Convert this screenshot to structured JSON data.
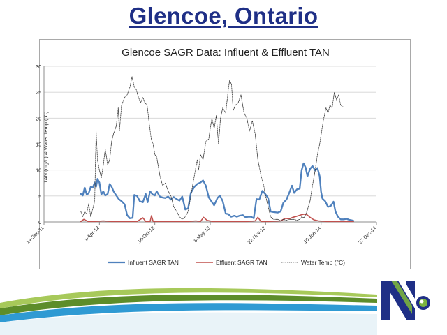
{
  "slide": {
    "title": "Glencoe, Ontario"
  },
  "chart_data": {
    "type": "line",
    "title": "Glencoe SAGR Data: Influent & Effluent TAN",
    "ylabel": "TAN (mg/L) & Water Temp (°C)",
    "xlabel": "",
    "ylim": [
      0,
      30
    ],
    "yticks": [
      0,
      5,
      10,
      15,
      20,
      25,
      30
    ],
    "xlim": [
      "2011-09-14",
      "2014-12-27"
    ],
    "xticks": [
      {
        "date": "2011-09-14",
        "label": "14-Sep-11"
      },
      {
        "date": "2012-04-01",
        "label": "1-Apr-12"
      },
      {
        "date": "2012-10-18",
        "label": "18-Oct-12"
      },
      {
        "date": "2013-05-06",
        "label": "6-May-13"
      },
      {
        "date": "2013-11-22",
        "label": "22-Nov-13"
      },
      {
        "date": "2014-06-10",
        "label": "10-Jun-14"
      },
      {
        "date": "2014-12-27",
        "label": "27-Dec-14"
      }
    ],
    "grid": "horizontal",
    "legend_position": "bottom",
    "series": [
      {
        "name": "Influent SAGR TAN",
        "color": "#4f81bd",
        "style": "solid-thick",
        "points": [
          [
            "2012-01-25",
            5.4
          ],
          [
            "2012-02-01",
            5.1
          ],
          [
            "2012-02-08",
            6.6
          ],
          [
            "2012-02-15",
            5.3
          ],
          [
            "2012-02-22",
            5.5
          ],
          [
            "2012-03-01",
            6.8
          ],
          [
            "2012-03-08",
            6.6
          ],
          [
            "2012-03-15",
            7.6
          ],
          [
            "2012-03-20",
            6.8
          ],
          [
            "2012-03-25",
            8.3
          ],
          [
            "2012-04-01",
            7.6
          ],
          [
            "2012-04-08",
            5.3
          ],
          [
            "2012-04-15",
            5.9
          ],
          [
            "2012-04-22",
            5.1
          ],
          [
            "2012-05-01",
            5.4
          ],
          [
            "2012-05-08",
            7.3
          ],
          [
            "2012-05-15",
            6.8
          ],
          [
            "2012-05-22",
            5.9
          ],
          [
            "2012-06-01",
            5.1
          ],
          [
            "2012-06-10",
            4.4
          ],
          [
            "2012-06-20",
            4.0
          ],
          [
            "2012-07-01",
            3.4
          ],
          [
            "2012-07-10",
            1.3
          ],
          [
            "2012-07-20",
            0.7
          ],
          [
            "2012-07-30",
            0.8
          ],
          [
            "2012-08-05",
            5.2
          ],
          [
            "2012-08-15",
            5.0
          ],
          [
            "2012-08-25",
            4.0
          ],
          [
            "2012-09-05",
            3.8
          ],
          [
            "2012-09-15",
            5.4
          ],
          [
            "2012-09-22",
            3.8
          ],
          [
            "2012-10-01",
            5.9
          ],
          [
            "2012-10-10",
            5.3
          ],
          [
            "2012-10-18",
            5.1
          ],
          [
            "2012-10-25",
            5.9
          ],
          [
            "2012-11-05",
            4.9
          ],
          [
            "2012-11-15",
            4.7
          ],
          [
            "2012-11-25",
            4.6
          ],
          [
            "2012-12-05",
            4.9
          ],
          [
            "2012-12-15",
            4.3
          ],
          [
            "2012-12-25",
            4.8
          ],
          [
            "2013-01-05",
            4.4
          ],
          [
            "2013-01-15",
            4.1
          ],
          [
            "2013-01-25",
            4.9
          ],
          [
            "2013-02-05",
            2.4
          ],
          [
            "2013-02-15",
            2.6
          ],
          [
            "2013-02-25",
            5.6
          ],
          [
            "2013-03-10",
            6.8
          ],
          [
            "2013-03-20",
            7.3
          ],
          [
            "2013-04-01",
            7.6
          ],
          [
            "2013-04-10",
            8.0
          ],
          [
            "2013-04-20",
            7.0
          ],
          [
            "2013-05-01",
            4.7
          ],
          [
            "2013-05-10",
            4.0
          ],
          [
            "2013-05-20",
            3.2
          ],
          [
            "2013-06-01",
            4.6
          ],
          [
            "2013-06-10",
            5.1
          ],
          [
            "2013-06-20",
            4.0
          ],
          [
            "2013-07-01",
            1.6
          ],
          [
            "2013-07-10",
            1.5
          ],
          [
            "2013-07-20",
            1.0
          ],
          [
            "2013-08-01",
            1.2
          ],
          [
            "2013-08-10",
            1.0
          ],
          [
            "2013-08-20",
            1.2
          ],
          [
            "2013-09-01",
            1.3
          ],
          [
            "2013-09-10",
            0.9
          ],
          [
            "2013-09-20",
            1.0
          ],
          [
            "2013-10-01",
            1.0
          ],
          [
            "2013-10-10",
            0.7
          ],
          [
            "2013-10-20",
            4.4
          ],
          [
            "2013-10-30",
            4.3
          ],
          [
            "2013-11-10",
            6.0
          ],
          [
            "2013-11-22",
            5.3
          ],
          [
            "2013-12-01",
            4.6
          ],
          [
            "2013-12-10",
            2.0
          ],
          [
            "2013-12-20",
            1.9
          ],
          [
            "2014-01-05",
            1.8
          ],
          [
            "2014-01-15",
            2.0
          ],
          [
            "2014-01-25",
            3.7
          ],
          [
            "2014-02-05",
            4.3
          ],
          [
            "2014-02-15",
            5.6
          ],
          [
            "2014-02-25",
            7.0
          ],
          [
            "2014-03-05",
            5.6
          ],
          [
            "2014-03-15",
            6.3
          ],
          [
            "2014-03-25",
            6.4
          ],
          [
            "2014-04-01",
            10.0
          ],
          [
            "2014-04-08",
            11.3
          ],
          [
            "2014-04-15",
            10.5
          ],
          [
            "2014-04-22",
            8.8
          ],
          [
            "2014-05-01",
            10.2
          ],
          [
            "2014-05-10",
            10.8
          ],
          [
            "2014-05-20",
            9.9
          ],
          [
            "2014-05-28",
            10.4
          ],
          [
            "2014-06-05",
            8.8
          ],
          [
            "2014-06-10",
            5.8
          ],
          [
            "2014-06-15",
            4.5
          ],
          [
            "2014-06-25",
            4.0
          ],
          [
            "2014-07-05",
            2.9
          ],
          [
            "2014-07-15",
            3.1
          ],
          [
            "2014-07-25",
            3.9
          ],
          [
            "2014-08-01",
            2.0
          ],
          [
            "2014-08-10",
            1.0
          ],
          [
            "2014-08-20",
            0.5
          ],
          [
            "2014-09-01",
            0.5
          ],
          [
            "2014-09-10",
            0.6
          ],
          [
            "2014-09-20",
            0.4
          ],
          [
            "2014-09-30",
            0.3
          ],
          [
            "2014-10-05",
            0.2
          ]
        ]
      },
      {
        "name": "Effluent SAGR TAN",
        "color": "#c0504d",
        "style": "solid",
        "points": [
          [
            "2012-01-25",
            0.1
          ],
          [
            "2012-02-05",
            0.5
          ],
          [
            "2012-02-20",
            0.1
          ],
          [
            "2012-03-15",
            0.1
          ],
          [
            "2012-04-15",
            0.2
          ],
          [
            "2012-05-15",
            0.1
          ],
          [
            "2012-06-15",
            0.1
          ],
          [
            "2012-07-15",
            0.1
          ],
          [
            "2012-08-15",
            0.1
          ],
          [
            "2012-09-05",
            0.8
          ],
          [
            "2012-09-15",
            0.1
          ],
          [
            "2012-10-01",
            0.1
          ],
          [
            "2012-10-06",
            1.2
          ],
          [
            "2012-10-12",
            0.1
          ],
          [
            "2012-11-15",
            0.1
          ],
          [
            "2012-12-15",
            0.1
          ],
          [
            "2013-01-15",
            0.1
          ],
          [
            "2013-02-15",
            0.1
          ],
          [
            "2013-03-15",
            0.2
          ],
          [
            "2013-04-01",
            0.1
          ],
          [
            "2013-04-12",
            0.9
          ],
          [
            "2013-04-25",
            0.3
          ],
          [
            "2013-05-15",
            0.1
          ],
          [
            "2013-06-15",
            0.1
          ],
          [
            "2013-07-15",
            0.1
          ],
          [
            "2013-08-15",
            0.1
          ],
          [
            "2013-09-15",
            0.1
          ],
          [
            "2013-10-15",
            0.2
          ],
          [
            "2013-10-25",
            0.9
          ],
          [
            "2013-11-05",
            0.1
          ],
          [
            "2013-12-05",
            0.1
          ],
          [
            "2014-01-15",
            0.2
          ],
          [
            "2014-02-01",
            0.7
          ],
          [
            "2014-02-15",
            0.6
          ],
          [
            "2014-03-01",
            0.9
          ],
          [
            "2014-03-15",
            1.1
          ],
          [
            "2014-04-01",
            1.4
          ],
          [
            "2014-04-10",
            1.5
          ],
          [
            "2014-04-20",
            1.4
          ],
          [
            "2014-05-01",
            0.9
          ],
          [
            "2014-05-15",
            0.4
          ],
          [
            "2014-06-01",
            0.2
          ],
          [
            "2014-07-01",
            0.1
          ],
          [
            "2014-08-01",
            0.1
          ],
          [
            "2014-09-01",
            0.1
          ],
          [
            "2014-10-05",
            0.1
          ]
        ]
      },
      {
        "name": "Water Temp (°C)",
        "color": "#333333",
        "style": "dotted",
        "points": [
          [
            "2012-01-25",
            2.0
          ],
          [
            "2012-02-01",
            1.0
          ],
          [
            "2012-02-08",
            2.0
          ],
          [
            "2012-02-15",
            1.5
          ],
          [
            "2012-02-22",
            3.5
          ],
          [
            "2012-03-01",
            1.0
          ],
          [
            "2012-03-08",
            2.5
          ],
          [
            "2012-03-15",
            4.0
          ],
          [
            "2012-03-20",
            17.5
          ],
          [
            "2012-03-25",
            12.0
          ],
          [
            "2012-04-01",
            10.0
          ],
          [
            "2012-04-08",
            8.5
          ],
          [
            "2012-04-15",
            11.0
          ],
          [
            "2012-04-22",
            14.0
          ],
          [
            "2012-05-01",
            11.0
          ],
          [
            "2012-05-08",
            12.0
          ],
          [
            "2012-05-15",
            15.5
          ],
          [
            "2012-05-22",
            17.0
          ],
          [
            "2012-06-01",
            18.5
          ],
          [
            "2012-06-08",
            22.0
          ],
          [
            "2012-06-12",
            17.5
          ],
          [
            "2012-06-20",
            22.5
          ],
          [
            "2012-07-01",
            24.0
          ],
          [
            "2012-07-10",
            24.5
          ],
          [
            "2012-07-20",
            26.0
          ],
          [
            "2012-07-28",
            28.0
          ],
          [
            "2012-08-05",
            26.0
          ],
          [
            "2012-08-12",
            25.5
          ],
          [
            "2012-08-20",
            24.0
          ],
          [
            "2012-08-28",
            23.0
          ],
          [
            "2012-09-05",
            24.0
          ],
          [
            "2012-09-12",
            23.0
          ],
          [
            "2012-09-20",
            22.5
          ],
          [
            "2012-09-28",
            19.0
          ],
          [
            "2012-10-05",
            16.0
          ],
          [
            "2012-10-12",
            15.0
          ],
          [
            "2012-10-18",
            13.0
          ],
          [
            "2012-10-25",
            12.5
          ],
          [
            "2012-11-05",
            9.0
          ],
          [
            "2012-11-15",
            7.0
          ],
          [
            "2012-11-25",
            7.5
          ],
          [
            "2012-12-05",
            6.0
          ],
          [
            "2012-12-15",
            5.0
          ],
          [
            "2012-12-25",
            3.0
          ],
          [
            "2013-01-05",
            2.0
          ],
          [
            "2013-01-15",
            1.0
          ],
          [
            "2013-01-25",
            0.5
          ],
          [
            "2013-02-05",
            1.0
          ],
          [
            "2013-02-15",
            2.0
          ],
          [
            "2013-02-25",
            5.0
          ],
          [
            "2013-03-10",
            9.0
          ],
          [
            "2013-03-20",
            12.0
          ],
          [
            "2013-03-25",
            10.0
          ],
          [
            "2013-04-01",
            13.0
          ],
          [
            "2013-04-10",
            12.0
          ],
          [
            "2013-04-20",
            15.5
          ],
          [
            "2013-05-01",
            16.0
          ],
          [
            "2013-05-06",
            18.0
          ],
          [
            "2013-05-12",
            20.0
          ],
          [
            "2013-05-20",
            18.0
          ],
          [
            "2013-05-28",
            20.5
          ],
          [
            "2013-06-05",
            15.0
          ],
          [
            "2013-06-12",
            20.0
          ],
          [
            "2013-06-20",
            22.0
          ],
          [
            "2013-07-01",
            21.0
          ],
          [
            "2013-07-10",
            25.5
          ],
          [
            "2013-07-15",
            27.3
          ],
          [
            "2013-07-22",
            26.5
          ],
          [
            "2013-07-28",
            21.5
          ],
          [
            "2013-08-05",
            22.5
          ],
          [
            "2013-08-15",
            23.0
          ],
          [
            "2013-08-25",
            24.5
          ],
          [
            "2013-09-05",
            21.0
          ],
          [
            "2013-09-15",
            20.0
          ],
          [
            "2013-09-25",
            17.5
          ],
          [
            "2013-10-05",
            19.5
          ],
          [
            "2013-10-15",
            17.0
          ],
          [
            "2013-10-25",
            12.0
          ],
          [
            "2013-11-05",
            9.0
          ],
          [
            "2013-11-15",
            7.0
          ],
          [
            "2013-11-22",
            5.0
          ],
          [
            "2013-12-01",
            3.0
          ],
          [
            "2013-12-10",
            1.0
          ],
          [
            "2013-12-20",
            0.5
          ],
          [
            "2014-01-05",
            0.5
          ],
          [
            "2014-01-15",
            0.2
          ],
          [
            "2014-01-25",
            0.5
          ],
          [
            "2014-02-05",
            0.3
          ],
          [
            "2014-02-15",
            0.5
          ],
          [
            "2014-02-25",
            0.5
          ],
          [
            "2014-03-05",
            0.5
          ],
          [
            "2014-03-15",
            0.3
          ],
          [
            "2014-03-25",
            0.5
          ],
          [
            "2014-04-01",
            1.0
          ],
          [
            "2014-04-10",
            0.8
          ],
          [
            "2014-04-20",
            2.0
          ],
          [
            "2014-05-01",
            4.0
          ],
          [
            "2014-05-10",
            7.0
          ],
          [
            "2014-05-20",
            10.0
          ],
          [
            "2014-05-28",
            13.0
          ],
          [
            "2014-06-05",
            15.0
          ],
          [
            "2014-06-12",
            17.5
          ],
          [
            "2014-06-20",
            20.0
          ],
          [
            "2014-06-28",
            22.0
          ],
          [
            "2014-07-05",
            21.0
          ],
          [
            "2014-07-12",
            22.5
          ],
          [
            "2014-07-20",
            22.0
          ],
          [
            "2014-07-28",
            25.0
          ],
          [
            "2014-08-05",
            23.5
          ],
          [
            "2014-08-12",
            24.5
          ],
          [
            "2014-08-20",
            22.5
          ],
          [
            "2014-08-28",
            22.2
          ]
        ]
      }
    ]
  },
  "colors": {
    "title": "#1f2f86",
    "footer_dark_green": "#3f6b1e",
    "footer_light_green": "#a7c95a",
    "footer_blue": "#3aa0d8",
    "logo_navy": "#1f2f86",
    "logo_green": "#7ab33e"
  },
  "logo": {
    "icon": "nk-logo-icon"
  }
}
